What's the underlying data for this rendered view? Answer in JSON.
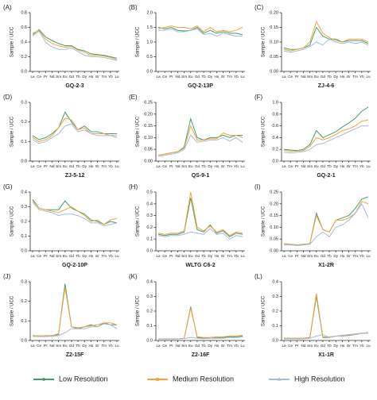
{
  "legend": [
    {
      "name": "Low Resolution",
      "color": "#4a9a6e"
    },
    {
      "name": "Medium Resolution",
      "color": "#f0a540"
    },
    {
      "name": "High Resolution",
      "color": "#a3bcd9"
    }
  ],
  "chart_data": [
    {
      "type": "line",
      "panel": "(A)",
      "title": "GQ-2-3",
      "y_label": "Sample / UCC",
      "categories": [
        "La",
        "Ce",
        "Pr",
        "Nd",
        "Sm",
        "Eu",
        "Gd",
        "Tb",
        "Dy",
        "Ho",
        "Er",
        "Tm",
        "Yb",
        "Lu"
      ],
      "ylim": [
        0,
        0.8
      ],
      "yticks": [
        {
          "value": 0,
          "label": "0.0"
        },
        0.2,
        0.4,
        0.6,
        0.8
      ],
      "series": [
        {
          "values": [
            0.5,
            0.57,
            0.47,
            0.42,
            0.38,
            0.35,
            0.35,
            0.3,
            0.28,
            0.24,
            0.23,
            0.22,
            0.2,
            0.18
          ]
        },
        {
          "values": [
            0.52,
            0.56,
            0.44,
            0.38,
            0.35,
            0.33,
            0.34,
            0.29,
            0.26,
            0.22,
            0.22,
            0.21,
            0.19,
            0.16
          ]
        },
        {
          "values": [
            0.48,
            0.55,
            0.4,
            0.33,
            0.3,
            0.3,
            0.32,
            0.27,
            0.22,
            0.2,
            0.2,
            0.19,
            0.17,
            0.15
          ]
        }
      ]
    },
    {
      "type": "line",
      "panel": "(B)",
      "title": "GQ-2-13P",
      "y_label": "Sample / UCC",
      "categories": [
        "La",
        "Ce",
        "Pr",
        "Nd",
        "Sm",
        "Eu",
        "Gd",
        "Tb",
        "Dy",
        "Ho",
        "Er",
        "Tm",
        "Yb",
        "Lu"
      ],
      "ylim": [
        0,
        2
      ],
      "yticks": [
        {
          "value": 0,
          "label": "0.0"
        },
        0.5,
        {
          "value": 1,
          "label": "1.0"
        },
        1.5,
        {
          "value": 2,
          "label": "2.0"
        }
      ],
      "series": [
        {
          "values": [
            1.5,
            1.45,
            1.5,
            1.4,
            1.38,
            1.4,
            1.5,
            1.3,
            1.4,
            1.3,
            1.35,
            1.3,
            1.3,
            1.25
          ]
        },
        {
          "values": [
            1.45,
            1.5,
            1.55,
            1.5,
            1.5,
            1.45,
            1.55,
            1.35,
            1.5,
            1.35,
            1.4,
            1.35,
            1.4,
            1.5
          ]
        },
        {
          "values": [
            1.4,
            1.4,
            1.45,
            1.35,
            1.35,
            1.4,
            1.45,
            1.25,
            1.3,
            1.2,
            1.3,
            1.25,
            1.2,
            1.2
          ]
        }
      ]
    },
    {
      "type": "line",
      "panel": "(C)",
      "title": "ZJ-4-6",
      "y_label": "Sample / UCC",
      "categories": [
        "La",
        "Ce",
        "Pr",
        "Nd",
        "Sm",
        "Eu",
        "Gd",
        "Tb",
        "Dy",
        "Ho",
        "Er",
        "Tm",
        "Yb",
        "Lu"
      ],
      "ylim": [
        0,
        0.2
      ],
      "yticks": [
        {
          "value": 0,
          "label": "0.00"
        },
        0.05,
        {
          "value": 0.1,
          "label": "0.10"
        },
        0.15,
        {
          "value": 0.2,
          "label": "0.20"
        }
      ],
      "series": [
        {
          "values": [
            0.08,
            0.075,
            0.075,
            0.08,
            0.09,
            0.15,
            0.12,
            0.11,
            0.11,
            0.1,
            0.105,
            0.105,
            0.105,
            0.095
          ]
        },
        {
          "values": [
            0.075,
            0.07,
            0.075,
            0.08,
            0.1,
            0.17,
            0.13,
            0.115,
            0.105,
            0.1,
            0.11,
            0.11,
            0.11,
            0.1
          ]
        },
        {
          "values": [
            0.07,
            0.065,
            0.07,
            0.075,
            0.085,
            0.1,
            0.09,
            0.11,
            0.1,
            0.095,
            0.1,
            0.095,
            0.1,
            0.09
          ]
        }
      ]
    },
    {
      "type": "line",
      "panel": "(D)",
      "title": "ZJ-5-12",
      "y_label": "Sample / UCC",
      "categories": [
        "La",
        "Ce",
        "Pr",
        "Nd",
        "Sm",
        "Eu",
        "Gd",
        "Tb",
        "Dy",
        "Ho",
        "Er",
        "Tm",
        "Yb",
        "Lu"
      ],
      "ylim": [
        0,
        0.3
      ],
      "yticks": [
        {
          "value": 0,
          "label": "0.0"
        },
        0.1,
        0.2,
        0.3
      ],
      "series": [
        {
          "values": [
            0.13,
            0.11,
            0.12,
            0.14,
            0.17,
            0.25,
            0.2,
            0.16,
            0.18,
            0.15,
            0.15,
            0.14,
            0.14,
            0.14
          ]
        },
        {
          "values": [
            0.12,
            0.1,
            0.11,
            0.13,
            0.17,
            0.22,
            0.21,
            0.16,
            0.17,
            0.14,
            0.14,
            0.14,
            0.13,
            0.13
          ]
        },
        {
          "values": [
            0.11,
            0.09,
            0.1,
            0.12,
            0.14,
            0.18,
            0.19,
            0.15,
            0.16,
            0.14,
            0.13,
            0.13,
            0.13,
            0.12
          ]
        }
      ]
    },
    {
      "type": "line",
      "panel": "(E)",
      "title": "QS-9-1",
      "y_label": "Sample / UCC",
      "categories": [
        "La",
        "Ce",
        "Pr",
        "Nd",
        "Sm",
        "Eu",
        "Gd",
        "Tb",
        "Dy",
        "Ho",
        "Er",
        "Tm",
        "Yb",
        "Lu"
      ],
      "ylim": [
        0,
        0.25
      ],
      "yticks": [
        {
          "value": 0,
          "label": "0.00"
        },
        0.05,
        {
          "value": 0.1,
          "label": "0.10"
        },
        0.15,
        {
          "value": 0.2,
          "label": "0.20"
        },
        0.25
      ],
      "series": [
        {
          "values": [
            0.025,
            0.03,
            0.035,
            0.04,
            0.06,
            0.18,
            0.1,
            0.09,
            0.1,
            0.1,
            0.11,
            0.1,
            0.11,
            0.11
          ]
        },
        {
          "values": [
            0.025,
            0.03,
            0.035,
            0.04,
            0.055,
            0.15,
            0.09,
            0.09,
            0.095,
            0.095,
            0.12,
            0.11,
            0.11,
            0.1
          ]
        },
        {
          "values": [
            0.02,
            0.025,
            0.03,
            0.035,
            0.05,
            0.11,
            0.08,
            0.085,
            0.09,
            0.09,
            0.1,
            0.085,
            0.1,
            0.08
          ]
        }
      ]
    },
    {
      "type": "line",
      "panel": "(F)",
      "title": "GQ-2-1",
      "y_label": "Sample / UCC",
      "categories": [
        "La",
        "Ce",
        "Pr",
        "Nd",
        "Sm",
        "Eu",
        "Gd",
        "Tb",
        "Dy",
        "Ho",
        "Er",
        "Tm",
        "Yb",
        "Lu"
      ],
      "ylim": [
        0,
        1
      ],
      "yticks": [
        {
          "value": 0,
          "label": "0.0"
        },
        0.2,
        0.4,
        0.6,
        0.8,
        {
          "value": 1,
          "label": "1.0"
        }
      ],
      "series": [
        {
          "values": [
            0.2,
            0.19,
            0.18,
            0.2,
            0.28,
            0.52,
            0.4,
            0.45,
            0.5,
            0.58,
            0.65,
            0.73,
            0.85,
            0.92
          ]
        },
        {
          "values": [
            0.18,
            0.17,
            0.17,
            0.18,
            0.25,
            0.4,
            0.36,
            0.4,
            0.45,
            0.52,
            0.55,
            0.6,
            0.68,
            0.7
          ]
        },
        {
          "values": [
            0.15,
            0.14,
            0.15,
            0.16,
            0.2,
            0.28,
            0.3,
            0.35,
            0.4,
            0.45,
            0.5,
            0.55,
            0.6,
            0.6
          ]
        }
      ]
    },
    {
      "type": "line",
      "panel": "(G)",
      "title": "GQ-2-10P",
      "y_label": "Sample / UCC",
      "categories": [
        "La",
        "Ce",
        "Pr",
        "Nd",
        "Sm",
        "Eu",
        "Gd",
        "Tb",
        "Dy",
        "Ho",
        "Er",
        "Tm",
        "Yb",
        "Lu"
      ],
      "ylim": [
        0,
        0.4
      ],
      "yticks": [
        {
          "value": 0,
          "label": "0.0"
        },
        0.1,
        0.2,
        0.3,
        0.4
      ],
      "series": [
        {
          "values": [
            0.35,
            0.29,
            0.28,
            0.28,
            0.28,
            0.34,
            0.29,
            0.27,
            0.25,
            0.21,
            0.2,
            0.18,
            0.2,
            0.19
          ]
        },
        {
          "values": [
            0.34,
            0.29,
            0.28,
            0.27,
            0.26,
            0.28,
            0.3,
            0.27,
            0.24,
            0.2,
            0.21,
            0.18,
            0.21,
            0.22
          ]
        },
        {
          "values": [
            0.33,
            0.28,
            0.27,
            0.26,
            0.24,
            0.25,
            0.25,
            0.24,
            0.22,
            0.19,
            0.19,
            0.17,
            0.18,
            0.19
          ]
        }
      ]
    },
    {
      "type": "line",
      "panel": "(H)",
      "title": "WLTG C6-2",
      "y_label": "Sample / UCC",
      "categories": [
        "La",
        "Ce",
        "Pr",
        "Nd",
        "Sm",
        "Eu",
        "Gd",
        "Tb",
        "Dy",
        "Ho",
        "Er",
        "Tm",
        "Yb",
        "Lu"
      ],
      "ylim": [
        0,
        0.5
      ],
      "yticks": [
        {
          "value": 0,
          "label": "0.0"
        },
        0.1,
        0.2,
        0.3,
        0.4,
        0.5
      ],
      "series": [
        {
          "values": [
            0.14,
            0.13,
            0.14,
            0.14,
            0.16,
            0.45,
            0.18,
            0.16,
            0.22,
            0.15,
            0.17,
            0.12,
            0.15,
            0.14
          ]
        },
        {
          "values": [
            0.15,
            0.14,
            0.15,
            0.15,
            0.17,
            0.5,
            0.2,
            0.17,
            0.21,
            0.16,
            0.18,
            0.13,
            0.16,
            0.15
          ]
        },
        {
          "values": [
            0.13,
            0.12,
            0.13,
            0.13,
            0.14,
            0.16,
            0.15,
            0.14,
            0.19,
            0.14,
            0.15,
            0.1,
            0.13,
            0.12
          ]
        }
      ]
    },
    {
      "type": "line",
      "panel": "(I)",
      "title": "X1-2R",
      "y_label": "Sample / UCC",
      "categories": [
        "La",
        "Ce",
        "Pr",
        "Nd",
        "Sm",
        "Eu",
        "Gd",
        "Tb",
        "Dy",
        "Ho",
        "Er",
        "Tm",
        "Yb",
        "Lu"
      ],
      "ylim": [
        0,
        0.25
      ],
      "yticks": [
        {
          "value": 0,
          "label": "0.00"
        },
        0.05,
        {
          "value": 0.1,
          "label": "0.10"
        },
        0.15,
        {
          "value": 0.2,
          "label": "0.20"
        },
        0.25
      ],
      "series": [
        {
          "values": [
            0.03,
            0.028,
            0.025,
            0.028,
            0.03,
            0.16,
            0.09,
            0.08,
            0.13,
            0.14,
            0.15,
            0.18,
            0.22,
            0.23
          ]
        },
        {
          "values": [
            0.03,
            0.027,
            0.025,
            0.027,
            0.03,
            0.15,
            0.09,
            0.08,
            0.13,
            0.13,
            0.14,
            0.16,
            0.21,
            0.2
          ]
        },
        {
          "values": [
            0.025,
            0.025,
            0.022,
            0.025,
            0.028,
            0.06,
            0.08,
            0.06,
            0.1,
            0.11,
            0.13,
            0.16,
            0.2,
            0.14
          ]
        }
      ]
    },
    {
      "type": "line",
      "panel": "(J)",
      "title": "Z2-15F",
      "y_label": "Sample / UCC",
      "categories": [
        "La",
        "Ce",
        "Pr",
        "Nd",
        "Sm",
        "Eu",
        "Gd",
        "Tb",
        "Dy",
        "Ho",
        "Er",
        "Tm",
        "Yb",
        "Lu"
      ],
      "ylim": [
        0,
        0.3
      ],
      "yticks": [
        {
          "value": 0,
          "label": "0.0"
        },
        0.1,
        0.2,
        0.3
      ],
      "series": [
        {
          "values": [
            0.025,
            0.024,
            0.025,
            0.025,
            0.03,
            0.29,
            0.07,
            0.06,
            0.07,
            0.08,
            0.07,
            0.09,
            0.08,
            0.08
          ]
        },
        {
          "values": [
            0.025,
            0.024,
            0.025,
            0.025,
            0.035,
            0.27,
            0.07,
            0.065,
            0.07,
            0.075,
            0.08,
            0.09,
            0.09,
            0.08
          ]
        },
        {
          "values": [
            0.02,
            0.02,
            0.02,
            0.022,
            0.025,
            0.04,
            0.06,
            0.06,
            0.06,
            0.07,
            0.07,
            0.085,
            0.08,
            0.06
          ]
        }
      ]
    },
    {
      "type": "line",
      "panel": "(K)",
      "title": "Z2-16F",
      "y_label": "Sample / UCC",
      "categories": [
        "La",
        "Ce",
        "Pr",
        "Nd",
        "Sm",
        "Eu",
        "Gd",
        "Tb",
        "Dy",
        "Ho",
        "Er",
        "Tm",
        "Yb",
        "Lu"
      ],
      "ylim": [
        0,
        0.4
      ],
      "yticks": [
        {
          "value": 0,
          "label": "0.0"
        },
        0.1,
        0.2,
        0.3,
        0.4
      ],
      "series": [
        {
          "values": [
            0.01,
            0.01,
            0.01,
            0.01,
            0.015,
            0.23,
            0.02,
            0.015,
            0.02,
            0.02,
            0.02,
            0.025,
            0.025,
            0.03
          ]
        },
        {
          "values": [
            0.01,
            0.01,
            0.01,
            0.01,
            0.015,
            0.22,
            0.025,
            0.02,
            0.02,
            0.025,
            0.025,
            0.03,
            0.03,
            0.035
          ]
        },
        {
          "values": [
            0.01,
            0.01,
            0.01,
            0.01,
            0.012,
            0.02,
            0.015,
            0.012,
            0.015,
            0.015,
            0.015,
            0.02,
            0.02,
            0.025
          ]
        }
      ]
    },
    {
      "type": "line",
      "panel": "(L)",
      "title": "X1-1R",
      "y_label": "Sample / UCC",
      "categories": [
        "La",
        "Ce",
        "Pr",
        "Nd",
        "Sm",
        "Eu",
        "Gd",
        "Tb",
        "Dy",
        "Ho",
        "Er",
        "Tm",
        "Yb",
        "Lu"
      ],
      "ylim": [
        0,
        0.4
      ],
      "yticks": [
        {
          "value": 0,
          "label": "0.0"
        },
        0.1,
        0.2,
        0.3,
        0.4
      ],
      "series": [
        {
          "values": [
            0.015,
            0.015,
            0.015,
            0.015,
            0.02,
            0.3,
            0.02,
            0.02,
            0.03,
            0.03,
            0.035,
            0.04,
            0.05,
            0.05
          ]
        },
        {
          "values": [
            0.015,
            0.015,
            0.015,
            0.015,
            0.02,
            0.32,
            0.025,
            0.025,
            0.03,
            0.035,
            0.04,
            0.045,
            0.05,
            0.055
          ]
        },
        {
          "values": [
            0.01,
            0.01,
            0.01,
            0.01,
            0.015,
            0.03,
            0.04,
            0.02,
            0.03,
            0.03,
            0.04,
            0.04,
            0.05,
            0.05
          ]
        }
      ]
    }
  ]
}
